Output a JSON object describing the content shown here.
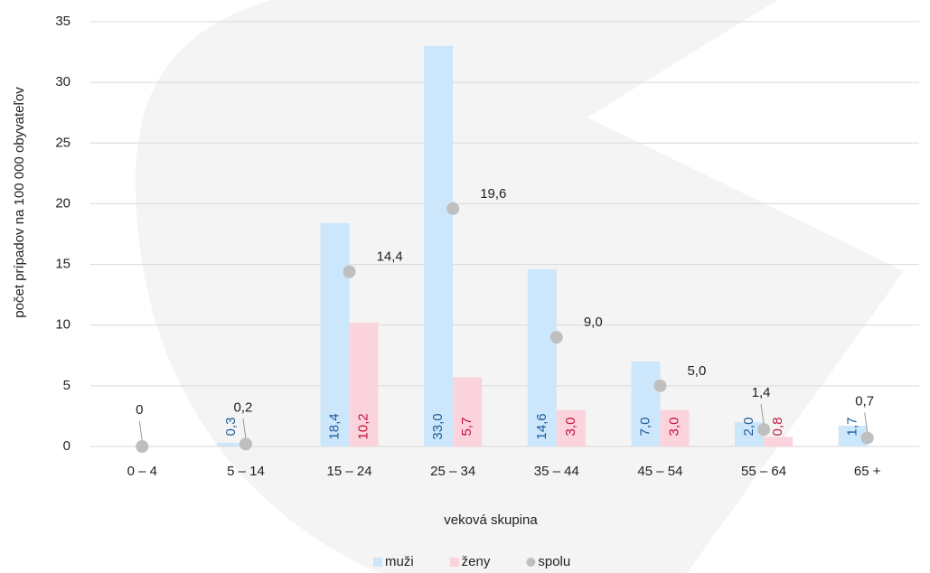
{
  "chart_data": {
    "type": "bar",
    "y_label": "počet prípadov na 100 000 obyvateľov",
    "x_label": "veková skupina",
    "categories": [
      "0 – 4",
      "5 – 14",
      "15 – 24",
      "25 – 34",
      "35 – 44",
      "45 – 54",
      "55 – 64",
      "65 +"
    ],
    "series": [
      {
        "name": "muži",
        "type": "bar",
        "color": "#cce6fb",
        "label_color": "#1f5c99",
        "values": [
          null,
          0.3,
          18.4,
          33.0,
          14.6,
          7.0,
          2.0,
          1.7
        ],
        "value_labels": [
          null,
          "0,3",
          "18,4",
          "33,0",
          "14,6",
          "7,0",
          "2,0",
          "1,7"
        ]
      },
      {
        "name": "ženy",
        "type": "bar",
        "color": "#fbd3dc",
        "label_color": "#c0143c",
        "values": [
          null,
          null,
          10.2,
          5.7,
          3.0,
          3.0,
          0.8,
          null
        ],
        "value_labels": [
          null,
          null,
          "10,2",
          "5,7",
          "3,0",
          "3,0",
          "0,8",
          null
        ]
      },
      {
        "name": "spolu",
        "type": "scatter",
        "color": "#bfbfbf",
        "label_color": "#222",
        "values": [
          0,
          0.2,
          14.4,
          19.6,
          9.0,
          5.0,
          1.4,
          0.7
        ],
        "value_labels": [
          "0",
          "0,2",
          "14,4",
          "19,6",
          "9,0",
          "5,0",
          "1,4",
          "0,7"
        ]
      }
    ],
    "ylim": [
      0,
      35
    ],
    "yticks": [
      0,
      5,
      10,
      15,
      20,
      25,
      30,
      35
    ],
    "grid": true,
    "legend": "bottom"
  }
}
